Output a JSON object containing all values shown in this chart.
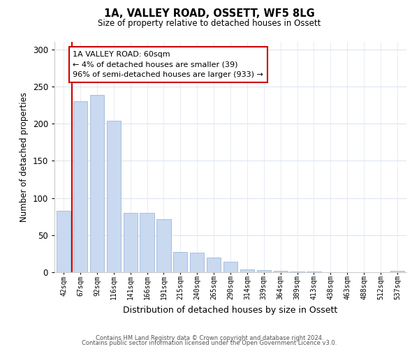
{
  "title": "1A, VALLEY ROAD, OSSETT, WF5 8LG",
  "subtitle": "Size of property relative to detached houses in Ossett",
  "xlabel": "Distribution of detached houses by size in Ossett",
  "ylabel": "Number of detached properties",
  "categories": [
    "42sqm",
    "67sqm",
    "92sqm",
    "116sqm",
    "141sqm",
    "166sqm",
    "191sqm",
    "215sqm",
    "240sqm",
    "265sqm",
    "290sqm",
    "314sqm",
    "339sqm",
    "364sqm",
    "389sqm",
    "413sqm",
    "438sqm",
    "463sqm",
    "488sqm",
    "512sqm",
    "537sqm"
  ],
  "values": [
    83,
    230,
    239,
    204,
    80,
    80,
    71,
    27,
    26,
    20,
    14,
    4,
    3,
    2,
    1,
    1,
    0,
    0,
    0,
    0,
    2
  ],
  "bar_color": "#c8d9f0",
  "bar_edge_color": "#a0b8d8",
  "vline_color": "#cc0000",
  "annotation_text": "1A VALLEY ROAD: 60sqm\n← 4% of detached houses are smaller (39)\n96% of semi-detached houses are larger (933) →",
  "annotation_box_color": "#ffffff",
  "annotation_box_edge": "#cc0000",
  "ylim": [
    0,
    310
  ],
  "yticks": [
    0,
    50,
    100,
    150,
    200,
    250,
    300
  ],
  "footer1": "Contains HM Land Registry data © Crown copyright and database right 2024.",
  "footer2": "Contains public sector information licensed under the Open Government Licence v3.0.",
  "bg_color": "#ffffff",
  "grid_color": "#dde4f0"
}
